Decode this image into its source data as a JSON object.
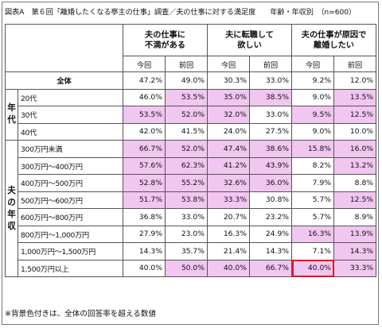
{
  "title": "図表A　第６回「離婚したくなる亭主の仕事」調査／夫の仕事に対する満足度　　年齢・年収別　（n=600）",
  "footnote": "※背景色付きは、全体の回答率を超える数値",
  "chart_data": {
    "type": "table",
    "columns": [
      {
        "name": "夫の仕事に\n不満がある",
        "sub": [
          "今回",
          "前回"
        ]
      },
      {
        "name": "夫に転職して\n欲しい",
        "sub": [
          "今回",
          "前回"
        ]
      },
      {
        "name": "夫の仕事が原因で\n離婚したい",
        "sub": [
          "今回",
          "前回"
        ]
      }
    ],
    "groups": [
      {
        "label": "",
        "rows": [
          {
            "label": "全体",
            "values": [
              "47.2%",
              "49.0%",
              "30.3%",
              "33.0%",
              "9.2%",
              "12.0%"
            ],
            "highlight": [
              false,
              false,
              false,
              false,
              false,
              false
            ]
          }
        ]
      },
      {
        "label": "年代",
        "rows": [
          {
            "label": "20代",
            "values": [
              "46.0%",
              "53.5%",
              "35.0%",
              "38.5%",
              "9.0%",
              "13.5%"
            ],
            "highlight": [
              false,
              true,
              true,
              true,
              false,
              true
            ]
          },
          {
            "label": "30代",
            "values": [
              "53.5%",
              "52.0%",
              "32.0%",
              "33.0%",
              "9.5%",
              "12.5%"
            ],
            "highlight": [
              true,
              true,
              true,
              false,
              true,
              true
            ]
          },
          {
            "label": "40代",
            "values": [
              "42.0%",
              "41.5%",
              "24.0%",
              "27.5%",
              "9.0%",
              "10.0%"
            ],
            "highlight": [
              false,
              false,
              false,
              false,
              false,
              false
            ]
          }
        ]
      },
      {
        "label": "夫の年収",
        "rows": [
          {
            "label": "300万円未満",
            "values": [
              "66.7%",
              "52.0%",
              "47.4%",
              "38.6%",
              "15.8%",
              "16.0%"
            ],
            "highlight": [
              true,
              true,
              true,
              true,
              true,
              true
            ]
          },
          {
            "label": "300万円～400万円",
            "values": [
              "57.6%",
              "62.3%",
              "41.2%",
              "43.9%",
              "8.2%",
              "13.2%"
            ],
            "highlight": [
              true,
              true,
              true,
              true,
              false,
              true
            ]
          },
          {
            "label": "400万円～500万円",
            "values": [
              "52.8%",
              "55.2%",
              "32.6%",
              "36.0%",
              "7.9%",
              "8.8%"
            ],
            "highlight": [
              true,
              true,
              true,
              true,
              false,
              false
            ]
          },
          {
            "label": "500万円～600万円",
            "values": [
              "51.7%",
              "53.8%",
              "33.3%",
              "30.8%",
              "5.7%",
              "12.5%"
            ],
            "highlight": [
              true,
              true,
              true,
              false,
              false,
              true
            ]
          },
          {
            "label": "600万円～800万円",
            "values": [
              "36.8%",
              "33.0%",
              "20.7%",
              "23.2%",
              "5.7%",
              "8.9%"
            ],
            "highlight": [
              false,
              false,
              false,
              false,
              false,
              false
            ]
          },
          {
            "label": "800万円～1,000万円",
            "values": [
              "27.9%",
              "23.0%",
              "16.3%",
              "24.9%",
              "16.3%",
              "13.9%"
            ],
            "highlight": [
              false,
              false,
              false,
              false,
              true,
              true
            ]
          },
          {
            "label": "1,000万円～1,500万円",
            "values": [
              "14.3%",
              "35.7%",
              "21.4%",
              "14.3%",
              "7.1%",
              "14.3%"
            ],
            "highlight": [
              false,
              false,
              false,
              false,
              false,
              true
            ]
          },
          {
            "label": "1,500万円以上",
            "values": [
              "40.0%",
              "50.0%",
              "40.0%",
              "66.7%",
              "40.0%",
              "33.3%"
            ],
            "highlight": [
              false,
              true,
              true,
              true,
              true,
              true
            ],
            "boxed": [
              false,
              false,
              false,
              false,
              true,
              false
            ]
          }
        ]
      }
    ]
  }
}
